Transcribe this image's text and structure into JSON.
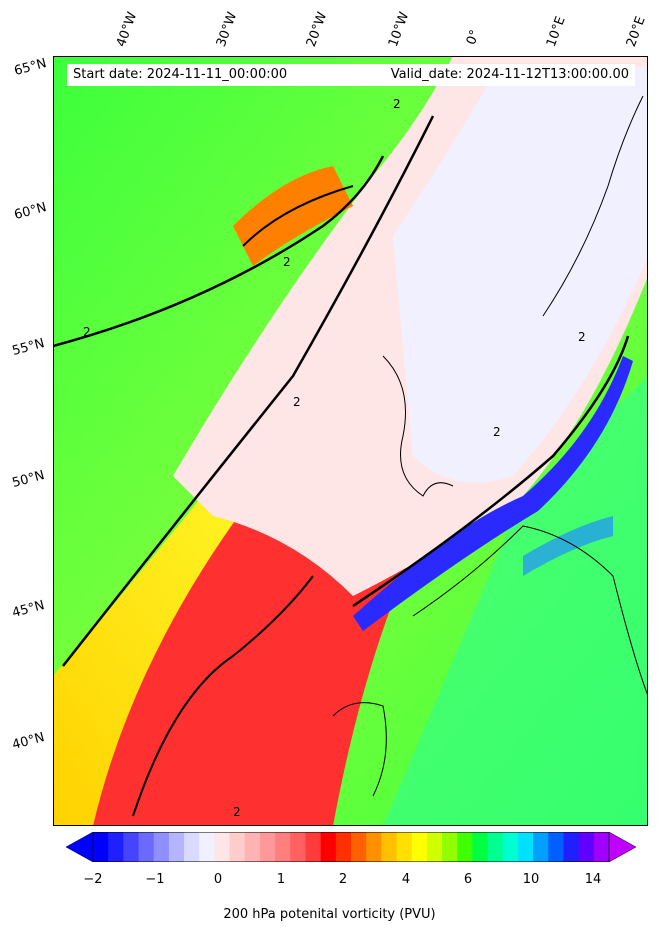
{
  "header": {
    "start_date": "Start date: 2024-11-11_00:00:00",
    "valid_date": "Valid_date: 2024-11-12T13:00:00.00"
  },
  "longitude_labels": [
    "40°W",
    "30°W",
    "20°W",
    "10°W",
    "0°",
    "10°E",
    "20°E"
  ],
  "latitude_labels": [
    "65°N",
    "60°N",
    "55°N",
    "50°N",
    "45°N",
    "40°N"
  ],
  "contour_label": "2",
  "colorbar": {
    "ticks": [
      "−2",
      "−1",
      "0",
      "1",
      "2",
      "4",
      "6",
      "10",
      "14"
    ],
    "label": "200 hPa potenital vorticity (PVU)",
    "colors": [
      "#0000ff",
      "#2020ff",
      "#4545ff",
      "#6a6aff",
      "#8f8fff",
      "#b4b4ff",
      "#dadaff",
      "#f0f0ff",
      "#ffe6e6",
      "#ffcccc",
      "#ffb3b3",
      "#ff9999",
      "#ff7f7f",
      "#ff6060",
      "#ff3b3b",
      "#ff0000",
      "#ff3000",
      "#ff6000",
      "#ff9000",
      "#ffc000",
      "#ffe000",
      "#ffff00",
      "#d0ff00",
      "#90ff00",
      "#40ff00",
      "#00ff40",
      "#00ff90",
      "#00ffd0",
      "#00e0ff",
      "#00a0ff",
      "#0060ff",
      "#2020ff",
      "#6000ff",
      "#a000ff"
    ]
  },
  "map_colors": {
    "land_border": "#000000",
    "high_pv": "#ff0000",
    "low_pv": "#2a2aff",
    "zero_pv": "#f0f0ff",
    "green_region": "#3cff3c"
  }
}
